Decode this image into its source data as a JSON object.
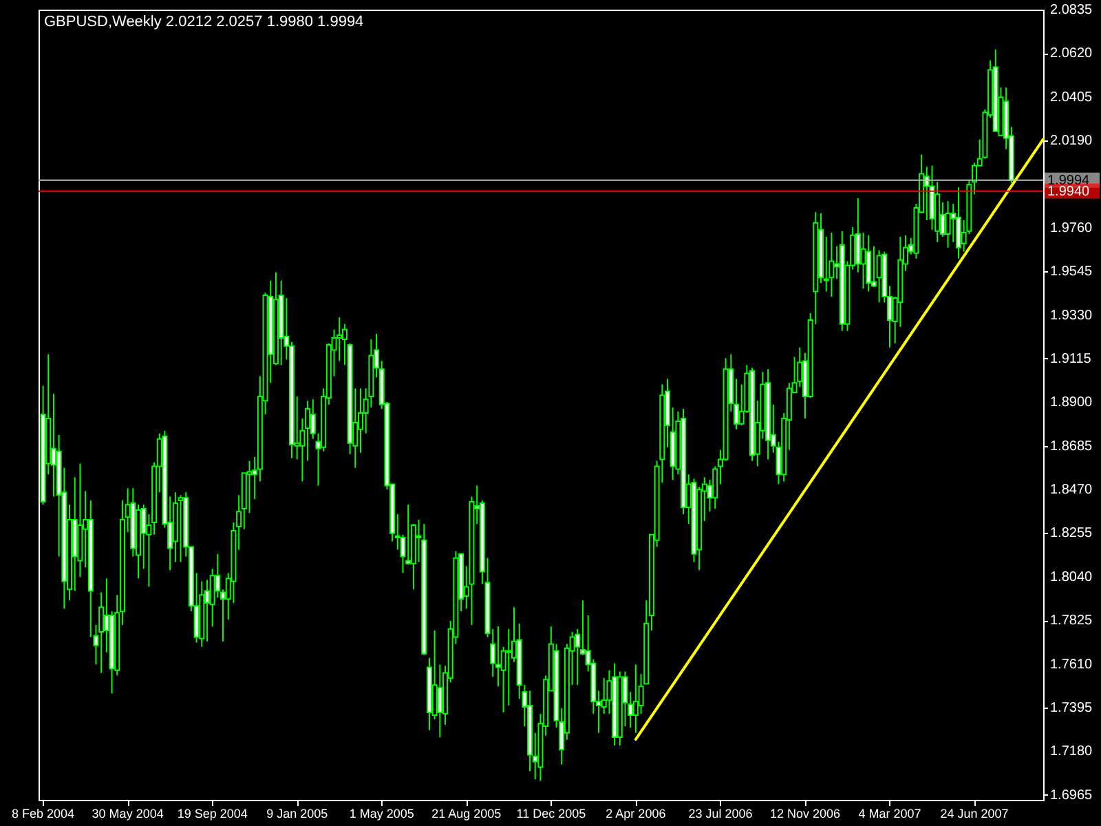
{
  "chart_data": {
    "type": "candlestick",
    "title": "GBPUSD,Weekly  2.0212 2.0257 1.9980 1.9994",
    "x": [
      "2004-02-08",
      "2004-02-15",
      "2004-02-22",
      "2004-02-29",
      "2004-03-07",
      "2004-03-14",
      "2004-03-21",
      "2004-03-28",
      "2004-04-04",
      "2004-04-11",
      "2004-04-18",
      "2004-04-25",
      "2004-05-02",
      "2004-05-09",
      "2004-05-16",
      "2004-05-23",
      "2004-05-30",
      "2004-06-06",
      "2004-06-13",
      "2004-06-20",
      "2004-06-27",
      "2004-07-04",
      "2004-07-11",
      "2004-07-18",
      "2004-07-25",
      "2004-08-01",
      "2004-08-08",
      "2004-08-15",
      "2004-08-22",
      "2004-08-29",
      "2004-09-05",
      "2004-09-12",
      "2004-09-19",
      "2004-09-26",
      "2004-10-03",
      "2004-10-10",
      "2004-10-17",
      "2004-10-24",
      "2004-10-31",
      "2004-11-07",
      "2004-11-14",
      "2004-11-21",
      "2004-11-28",
      "2004-12-05",
      "2004-12-12",
      "2004-12-19",
      "2004-12-26",
      "2005-01-02",
      "2005-01-09",
      "2005-01-16",
      "2005-01-23",
      "2005-01-30",
      "2005-02-06",
      "2005-02-13",
      "2005-02-20",
      "2005-02-27",
      "2005-03-06",
      "2005-03-13",
      "2005-03-20",
      "2005-03-27",
      "2005-04-03",
      "2005-04-10",
      "2005-04-17",
      "2005-04-24",
      "2005-05-01",
      "2005-05-08",
      "2005-05-15",
      "2005-05-22",
      "2005-05-29",
      "2005-06-05",
      "2005-06-12",
      "2005-06-19",
      "2005-06-26",
      "2005-07-03",
      "2005-07-10",
      "2005-07-17",
      "2005-07-24",
      "2005-07-31",
      "2005-08-07",
      "2005-08-14",
      "2005-08-21",
      "2005-08-28",
      "2005-09-04",
      "2005-09-11",
      "2005-09-18",
      "2005-09-25",
      "2005-10-02",
      "2005-10-09",
      "2005-10-16",
      "2005-10-23",
      "2005-10-30",
      "2005-11-06",
      "2005-11-13",
      "2005-11-20",
      "2005-11-27",
      "2005-12-04",
      "2005-12-11",
      "2005-12-18",
      "2005-12-25",
      "2006-01-01",
      "2006-01-08",
      "2006-01-15",
      "2006-01-22",
      "2006-01-29",
      "2006-02-05",
      "2006-02-12",
      "2006-02-19",
      "2006-02-26",
      "2006-03-05",
      "2006-03-12",
      "2006-03-19",
      "2006-03-26",
      "2006-04-02",
      "2006-04-09",
      "2006-04-16",
      "2006-04-23",
      "2006-04-30",
      "2006-05-07",
      "2006-05-14",
      "2006-05-21",
      "2006-05-28",
      "2006-06-04",
      "2006-06-11",
      "2006-06-18",
      "2006-06-25",
      "2006-07-02",
      "2006-07-09",
      "2006-07-16",
      "2006-07-23",
      "2006-07-30",
      "2006-08-06",
      "2006-08-13",
      "2006-08-20",
      "2006-08-27",
      "2006-09-03",
      "2006-09-10",
      "2006-09-17",
      "2006-09-24",
      "2006-10-01",
      "2006-10-08",
      "2006-10-15",
      "2006-10-22",
      "2006-10-29",
      "2006-11-05",
      "2006-11-12",
      "2006-11-19",
      "2006-11-26",
      "2006-12-03",
      "2006-12-10",
      "2006-12-17",
      "2006-12-24",
      "2006-12-31",
      "2007-01-07",
      "2007-01-14",
      "2007-01-21",
      "2007-01-28",
      "2007-02-04",
      "2007-02-11",
      "2007-02-18",
      "2007-02-25",
      "2007-03-04",
      "2007-03-11",
      "2007-03-18",
      "2007-03-25",
      "2007-04-01",
      "2007-04-08",
      "2007-04-15",
      "2007-04-22",
      "2007-04-29",
      "2007-05-06",
      "2007-05-13",
      "2007-05-20",
      "2007-05-27",
      "2007-06-03",
      "2007-06-10",
      "2007-06-17",
      "2007-06-24",
      "2007-07-01",
      "2007-07-08",
      "2007-07-15",
      "2007-07-22",
      "2007-07-29",
      "2007-08-05",
      "2007-08-12"
    ],
    "series": [
      {
        "color": "#00ff00",
        "ohlc": [
          [
            1.884,
            1.8981,
            1.8395,
            1.8409
          ],
          [
            1.8597,
            1.9136,
            1.8544,
            1.882
          ],
          [
            1.8671,
            1.8941,
            1.8435,
            1.8591
          ],
          [
            1.8658,
            1.8739,
            1.8139,
            1.8442
          ],
          [
            1.8456,
            1.8577,
            1.7882,
            1.8017
          ],
          [
            1.7977,
            1.8395,
            1.7923,
            1.8321
          ],
          [
            1.8321,
            1.853,
            1.797,
            1.8139
          ],
          [
            1.8119,
            1.8597,
            1.8038,
            1.8294
          ],
          [
            1.8274,
            1.8462,
            1.8085,
            1.8321
          ],
          [
            1.8321,
            1.8416,
            1.7742,
            1.797
          ],
          [
            1.7748,
            1.7802,
            1.7607,
            1.7701
          ],
          [
            1.7768,
            1.7963,
            1.7566,
            1.7889
          ],
          [
            1.7849,
            1.8031,
            1.7667,
            1.7775
          ],
          [
            1.7849,
            1.7869,
            1.7465,
            1.7586
          ],
          [
            1.7579,
            1.795,
            1.7553,
            1.7862
          ],
          [
            1.7869,
            1.8416,
            1.7802,
            1.8321
          ],
          [
            1.8334,
            1.8476,
            1.826,
            1.8395
          ],
          [
            1.8402,
            1.8476,
            1.8139,
            1.818
          ],
          [
            1.8146,
            1.8395,
            1.8031,
            1.8368
          ],
          [
            1.8375,
            1.8395,
            1.8079,
            1.8254
          ],
          [
            1.8247,
            1.8348,
            1.799,
            1.8294
          ],
          [
            1.8307,
            1.8604,
            1.8247,
            1.8584
          ],
          [
            1.8584,
            1.8746,
            1.8456,
            1.8719
          ],
          [
            1.8732,
            1.8759,
            1.8281,
            1.83
          ],
          [
            1.8307,
            1.8435,
            1.8072,
            1.818
          ],
          [
            1.8214,
            1.8456,
            1.8112,
            1.8402
          ],
          [
            1.8416,
            1.8442,
            1.8112,
            1.8429
          ],
          [
            1.8429,
            1.8456,
            1.8139,
            1.8187
          ],
          [
            1.8187,
            1.8187,
            1.7869,
            1.7896
          ],
          [
            1.7896,
            1.8058,
            1.7715,
            1.7742
          ],
          [
            1.7735,
            1.8017,
            1.7694,
            1.795
          ],
          [
            1.797,
            1.8024,
            1.7721,
            1.791
          ],
          [
            1.7903,
            1.8079,
            1.7795,
            1.8045
          ],
          [
            1.8045,
            1.8152,
            1.7937,
            1.797
          ],
          [
            1.7963,
            1.7977,
            1.7721,
            1.793
          ],
          [
            1.793,
            1.8058,
            1.7828,
            1.8031
          ],
          [
            1.8017,
            1.8307,
            1.791,
            1.8267
          ],
          [
            1.8287,
            1.8442,
            1.8173,
            1.8361
          ],
          [
            1.8375,
            1.8551,
            1.8274,
            1.8551
          ],
          [
            1.8544,
            1.8611,
            1.8354,
            1.8557
          ],
          [
            1.8564,
            1.8631,
            1.8422,
            1.8544
          ],
          [
            1.857,
            1.9028,
            1.851,
            1.8928
          ],
          [
            1.8907,
            1.944,
            1.884,
            1.9427
          ],
          [
            1.942,
            1.95,
            1.8995,
            1.9136
          ],
          [
            1.909,
            1.954,
            1.9083,
            1.9406
          ],
          [
            1.9427,
            1.95,
            1.9083,
            1.9217
          ],
          [
            1.9224,
            1.9413,
            1.911,
            1.9177
          ],
          [
            1.9177,
            1.9197,
            1.8624,
            1.8691
          ],
          [
            1.8685,
            1.8928,
            1.8618,
            1.8698
          ],
          [
            1.8685,
            1.882,
            1.851,
            1.8759
          ],
          [
            1.8772,
            1.8907,
            1.8611,
            1.8867
          ],
          [
            1.884,
            1.8914,
            1.8719,
            1.8746
          ],
          [
            1.8705,
            1.8746,
            1.8489,
            1.8671
          ],
          [
            1.8678,
            1.8968,
            1.8658,
            1.8928
          ],
          [
            1.8921,
            1.919,
            1.8888,
            1.9183
          ],
          [
            1.9157,
            1.9258,
            1.9028,
            1.9217
          ],
          [
            1.9217,
            1.9318,
            1.9103,
            1.923
          ],
          [
            1.921,
            1.9285,
            1.9083,
            1.9258
          ],
          [
            1.9183,
            1.919,
            1.8644,
            1.8698
          ],
          [
            1.8685,
            1.8968,
            1.8577,
            1.8799
          ],
          [
            1.8766,
            1.8968,
            1.8651,
            1.8847
          ],
          [
            1.8847,
            1.8968,
            1.8746,
            1.8914
          ],
          [
            1.8928,
            1.921,
            1.8874,
            1.913
          ],
          [
            1.9157,
            1.9237,
            1.9022,
            1.9069
          ],
          [
            1.9063,
            1.9103,
            1.8867,
            1.8888
          ],
          [
            1.8894,
            1.8901,
            1.8469,
            1.8489
          ],
          [
            1.8496,
            1.8496,
            1.8214,
            1.8254
          ],
          [
            1.824,
            1.8348,
            1.8173,
            1.8233
          ],
          [
            1.8233,
            1.8247,
            1.8058,
            1.8139
          ],
          [
            1.8119,
            1.8395,
            1.8099,
            1.8105
          ],
          [
            1.8105,
            1.83,
            1.7977,
            1.8294
          ],
          [
            1.824,
            1.8321,
            1.8112,
            1.8233
          ],
          [
            1.822,
            1.83,
            1.7653,
            1.766
          ],
          [
            1.7593,
            1.764,
            1.7283,
            1.7371
          ],
          [
            1.7357,
            1.7775,
            1.7337,
            1.7506
          ],
          [
            1.7492,
            1.7607,
            1.7249,
            1.7371
          ],
          [
            1.7364,
            1.76,
            1.731,
            1.7566
          ],
          [
            1.754,
            1.7822,
            1.7519,
            1.7782
          ],
          [
            1.7742,
            1.8166,
            1.7708,
            1.8132
          ],
          [
            1.8152,
            1.8152,
            1.7869,
            1.793
          ],
          [
            1.7944,
            1.8092,
            1.7882,
            1.799
          ],
          [
            1.8004,
            1.8435,
            1.7802,
            1.8409
          ],
          [
            1.8389,
            1.8489,
            1.83,
            1.8375
          ],
          [
            1.8402,
            1.8416,
            1.8004,
            1.8065
          ],
          [
            1.8011,
            1.8132,
            1.7742,
            1.7761
          ],
          [
            1.7708,
            1.7782,
            1.7546,
            1.7613
          ],
          [
            1.7607,
            1.7795,
            1.7499,
            1.7593
          ],
          [
            1.7579,
            1.7694,
            1.7371,
            1.7674
          ],
          [
            1.7667,
            1.7782,
            1.7405,
            1.7674
          ],
          [
            1.764,
            1.7889,
            1.762,
            1.7721
          ],
          [
            1.7728,
            1.7809,
            1.7438,
            1.7506
          ],
          [
            1.7472,
            1.7506,
            1.7303,
            1.7398
          ],
          [
            1.7405,
            1.7478,
            1.7081,
            1.7161
          ],
          [
            1.7155,
            1.727,
            1.7041,
            1.7128
          ],
          [
            1.7101,
            1.7364,
            1.7034,
            1.7316
          ],
          [
            1.7303,
            1.7553,
            1.7256,
            1.7533
          ],
          [
            1.7478,
            1.7795,
            1.7478,
            1.7708
          ],
          [
            1.7674,
            1.7708,
            1.7296,
            1.733
          ],
          [
            1.7323,
            1.7391,
            1.7114,
            1.7188
          ],
          [
            1.727,
            1.7708,
            1.7236,
            1.7687
          ],
          [
            1.7674,
            1.7768,
            1.7506,
            1.7742
          ],
          [
            1.7755,
            1.7782,
            1.7506,
            1.7694
          ],
          [
            1.768,
            1.7923,
            1.7653,
            1.766
          ],
          [
            1.7674,
            1.7849,
            1.7573,
            1.7607
          ],
          [
            1.7613,
            1.7633,
            1.7364,
            1.7424
          ],
          [
            1.7424,
            1.7478,
            1.727,
            1.7405
          ],
          [
            1.7398,
            1.754,
            1.7364,
            1.7431
          ],
          [
            1.7431,
            1.7579,
            1.7364,
            1.7526
          ],
          [
            1.7546,
            1.7613,
            1.7208,
            1.7249
          ],
          [
            1.7249,
            1.7573,
            1.7208,
            1.7546
          ],
          [
            1.7546,
            1.7573,
            1.7303,
            1.7418
          ],
          [
            1.7411,
            1.7472,
            1.7296,
            1.7357
          ],
          [
            1.7357,
            1.7607,
            1.727,
            1.7424
          ],
          [
            1.7405,
            1.756,
            1.7364,
            1.7499
          ],
          [
            1.7512,
            1.7923,
            1.7512,
            1.7809
          ],
          [
            1.7849,
            1.8247,
            1.7775,
            1.8247
          ],
          [
            1.822,
            1.8611,
            1.8187,
            1.8584
          ],
          [
            1.8618,
            1.8988,
            1.8503,
            1.8934
          ],
          [
            1.8954,
            1.9015,
            1.8678,
            1.8786
          ],
          [
            1.8753,
            1.8874,
            1.8517,
            1.8584
          ],
          [
            1.857,
            1.8854,
            1.8544,
            1.8806
          ],
          [
            1.882,
            1.8867,
            1.8348,
            1.8382
          ],
          [
            1.8382,
            1.8544,
            1.83,
            1.8496
          ],
          [
            1.8503,
            1.8523,
            1.8112,
            1.8152
          ],
          [
            1.8173,
            1.8483,
            1.8072,
            1.8469
          ],
          [
            1.8462,
            1.853,
            1.8314,
            1.8496
          ],
          [
            1.8489,
            1.8517,
            1.8361,
            1.8429
          ],
          [
            1.8429,
            1.8584,
            1.8375,
            1.857
          ],
          [
            1.8584,
            1.8665,
            1.8496,
            1.8618
          ],
          [
            1.8618,
            1.9117,
            1.8611,
            1.9063
          ],
          [
            1.9063,
            1.9136,
            1.8854,
            1.8894
          ],
          [
            1.8888,
            1.9015,
            1.8766,
            1.8793
          ],
          [
            1.8793,
            1.8988,
            1.8786,
            1.8854
          ],
          [
            1.8854,
            1.9083,
            1.8847,
            1.9042
          ],
          [
            1.9055,
            1.9069,
            1.8611,
            1.8638
          ],
          [
            1.8644,
            1.8907,
            1.8584,
            1.8799
          ],
          [
            1.8759,
            1.9049,
            1.8719,
            1.8988
          ],
          [
            1.8995,
            1.9063,
            1.8618,
            1.8712
          ],
          [
            1.8739,
            1.8888,
            1.8651,
            1.8685
          ],
          [
            1.8678,
            1.8705,
            1.8496,
            1.8544
          ],
          [
            1.8544,
            1.8847,
            1.851,
            1.882
          ],
          [
            1.8813,
            1.8995,
            1.8665,
            1.8968
          ],
          [
            1.8948,
            1.9123,
            1.8948,
            1.8995
          ],
          [
            1.9002,
            1.917,
            1.8975,
            1.9096
          ],
          [
            1.9103,
            1.9143,
            1.882,
            1.8928
          ],
          [
            1.8928,
            1.9339,
            1.8921,
            1.9305
          ],
          [
            1.9446,
            1.9837,
            1.9285,
            1.9784
          ],
          [
            1.975,
            1.9831,
            1.9487,
            1.9514
          ],
          [
            1.9507,
            1.9716,
            1.9446,
            1.95
          ],
          [
            1.9514,
            1.9736,
            1.942,
            1.9595
          ],
          [
            1.9581,
            1.9669,
            1.9507,
            1.9568
          ],
          [
            1.9675,
            1.9743,
            1.9251,
            1.9285
          ],
          [
            1.9285,
            1.9595,
            1.9251,
            1.9574
          ],
          [
            1.9574,
            1.9763,
            1.9554,
            1.9723
          ],
          [
            1.9729,
            1.9905,
            1.954,
            1.9581
          ],
          [
            1.9581,
            1.9736,
            1.946,
            1.9655
          ],
          [
            1.9642,
            1.9723,
            1.9446,
            1.9487
          ],
          [
            1.9493,
            1.9669,
            1.9467,
            1.9473
          ],
          [
            1.9514,
            1.9649,
            1.9392,
            1.9622
          ],
          [
            1.9628,
            1.9642,
            1.9392,
            1.942
          ],
          [
            1.942,
            1.9473,
            1.917,
            1.9305
          ],
          [
            1.9298,
            1.942,
            1.919,
            1.9413
          ],
          [
            1.9392,
            1.9716,
            1.9271,
            1.9601
          ],
          [
            1.9581,
            1.9723,
            1.9547,
            1.9662
          ],
          [
            1.9675,
            1.9709,
            1.9628,
            1.9642
          ],
          [
            1.9635,
            1.9878,
            1.9608,
            1.9858
          ],
          [
            1.9837,
            2.012,
            1.9831,
            2.0026
          ],
          [
            2.0013,
            2.006,
            1.9797,
            1.9965
          ],
          [
            1.9965,
            2.0066,
            1.975,
            1.9804
          ],
          [
            1.9743,
            1.9986,
            1.9689,
            1.9925
          ],
          [
            1.9824,
            1.9885,
            1.9716,
            1.9729
          ],
          [
            1.9729,
            1.9891,
            1.9662,
            1.9831
          ],
          [
            1.9831,
            1.9878,
            1.9689,
            1.9804
          ],
          [
            1.9811,
            1.9959,
            1.9608,
            1.9662
          ],
          [
            1.9682,
            1.9797,
            1.9642,
            1.9736
          ],
          [
            1.9743,
            1.9992,
            1.9729,
            1.9972
          ],
          [
            1.9986,
            2.008,
            1.9925,
            2.0066
          ],
          [
            2.0066,
            2.0195,
            2.0066,
            2.01
          ],
          [
            2.0107,
            2.0343,
            2.01,
            2.0329
          ],
          [
            2.0316,
            2.0585,
            2.0302,
            2.0538
          ],
          [
            2.0552,
            2.0639,
            2.0235,
            2.0235
          ],
          [
            2.0215,
            2.0451,
            2.0215,
            2.0403
          ],
          [
            2.0383,
            2.0451,
            2.0147,
            2.0201
          ],
          [
            2.0212,
            2.0257,
            1.998,
            1.9994
          ]
        ]
      },
      {
        "type": "line",
        "color": "#ffff00",
        "x": [
          "2006-04-02",
          "2007-09-23"
        ],
        "values": [
          1.7238,
          2.0196
        ]
      }
    ],
    "ref_lines": [
      {
        "axis": "y",
        "value": 1.9994,
        "label": "1.9994",
        "color": "#c0c0c0"
      },
      {
        "axis": "y",
        "value": 1.994,
        "label": "1.9940",
        "color": "#ff0000"
      }
    ],
    "xlim": [
      "2004-02-02",
      "2007-09-23"
    ],
    "xticks": [
      {
        "value": "2004-02-08",
        "label": "8 Feb 2004"
      },
      {
        "value": "2004-05-30",
        "label": "30 May 2004"
      },
      {
        "value": "2004-09-19",
        "label": "19 Sep 2004"
      },
      {
        "value": "2005-01-09",
        "label": "9 Jan 2005"
      },
      {
        "value": "2005-05-01",
        "label": "1 May 2005"
      },
      {
        "value": "2005-08-21",
        "label": "21 Aug 2005"
      },
      {
        "value": "2005-12-11",
        "label": "11 Dec 2005"
      },
      {
        "value": "2006-04-02",
        "label": "2 Apr 2006"
      },
      {
        "value": "2006-07-23",
        "label": "23 Jul 2006"
      },
      {
        "value": "2006-11-12",
        "label": "12 Nov 2006"
      },
      {
        "value": "2007-03-04",
        "label": "4 Mar 2007"
      },
      {
        "value": "2007-06-24",
        "label": "24 Jun 2007"
      }
    ],
    "ylim": [
      1.694,
      2.0835
    ],
    "yticks": [
      {
        "value": 2.0835,
        "label": "2.0835"
      },
      {
        "value": 2.062,
        "label": "2.0620"
      },
      {
        "value": 2.0405,
        "label": "2.0405"
      },
      {
        "value": 2.019,
        "label": "2.0190"
      },
      {
        "value": 1.976,
        "label": "1.9760"
      },
      {
        "value": 1.9545,
        "label": "1.9545"
      },
      {
        "value": 1.933,
        "label": "1.9330"
      },
      {
        "value": 1.9115,
        "label": "1.9115"
      },
      {
        "value": 1.89,
        "label": "1.8900"
      },
      {
        "value": 1.8685,
        "label": "1.8685"
      },
      {
        "value": 1.847,
        "label": "1.8470"
      },
      {
        "value": 1.8255,
        "label": "1.8255"
      },
      {
        "value": 1.804,
        "label": "1.8040"
      },
      {
        "value": 1.7825,
        "label": "1.7825"
      },
      {
        "value": 1.761,
        "label": "1.7610"
      },
      {
        "value": 1.7395,
        "label": "1.7395"
      },
      {
        "value": 1.718,
        "label": "1.7180"
      },
      {
        "value": 1.6965,
        "label": "1.6965"
      }
    ],
    "grid": false
  }
}
